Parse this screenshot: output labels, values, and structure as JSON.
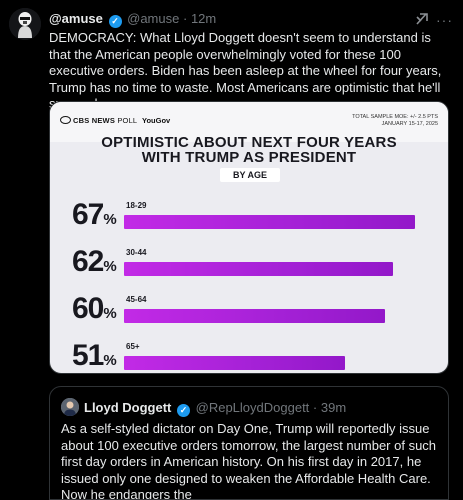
{
  "tweet": {
    "display_name": "@amuse",
    "handle": "@amuse",
    "time": "12m",
    "separator": "·",
    "text": "DEMOCRACY: What Lloyd Doggett doesn't seem to understand is that the American people overwhelmingly voted for these 100 executive orders. Biden has been asleep at the wheel for four years, Trump has no time to waste. Most Americans are optimistic that he'll succeed.",
    "more": "···"
  },
  "chart": {
    "source_logo": "CBS NEWS",
    "source_poll": "POLL",
    "partner": "YouGov",
    "sample_line1": "TOTAL SAMPLE MOE: +/- 2.5 PTS",
    "sample_line2": "JANUARY 15-17, 2025",
    "title_line1": "OPTIMISTIC ABOUT NEXT FOUR YEARS",
    "title_line2": "WITH TRUMP AS PRESIDENT",
    "subtitle": "BY AGE",
    "bar_color": "#a421d6"
  },
  "chart_data": {
    "type": "bar",
    "title": "OPTIMISTIC ABOUT NEXT FOUR YEARS WITH TRUMP AS PRESIDENT",
    "subtitle": "BY AGE",
    "categories": [
      "18-29",
      "30-44",
      "45-64",
      "65+"
    ],
    "values": [
      67,
      62,
      60,
      51
    ],
    "value_labels": [
      "67",
      "62",
      "60",
      "51"
    ],
    "unit": "%",
    "orientation": "horizontal"
  },
  "quote": {
    "display_name": "Lloyd Doggett",
    "handle": "@RepLloydDoggett",
    "time": "39m",
    "separator": "·",
    "text": "As a self-styled dictator on Day One, Trump will reportedly issue about 100 executive orders tomorrow, the largest number of such first day orders in American history. On his first day in 2017, he issued only one designed to weaken the Affordable Health Care. Now he endangers the"
  },
  "icons": {
    "verified": "verified-badge-icon",
    "grok": "grok-icon",
    "more": "more-icon"
  }
}
